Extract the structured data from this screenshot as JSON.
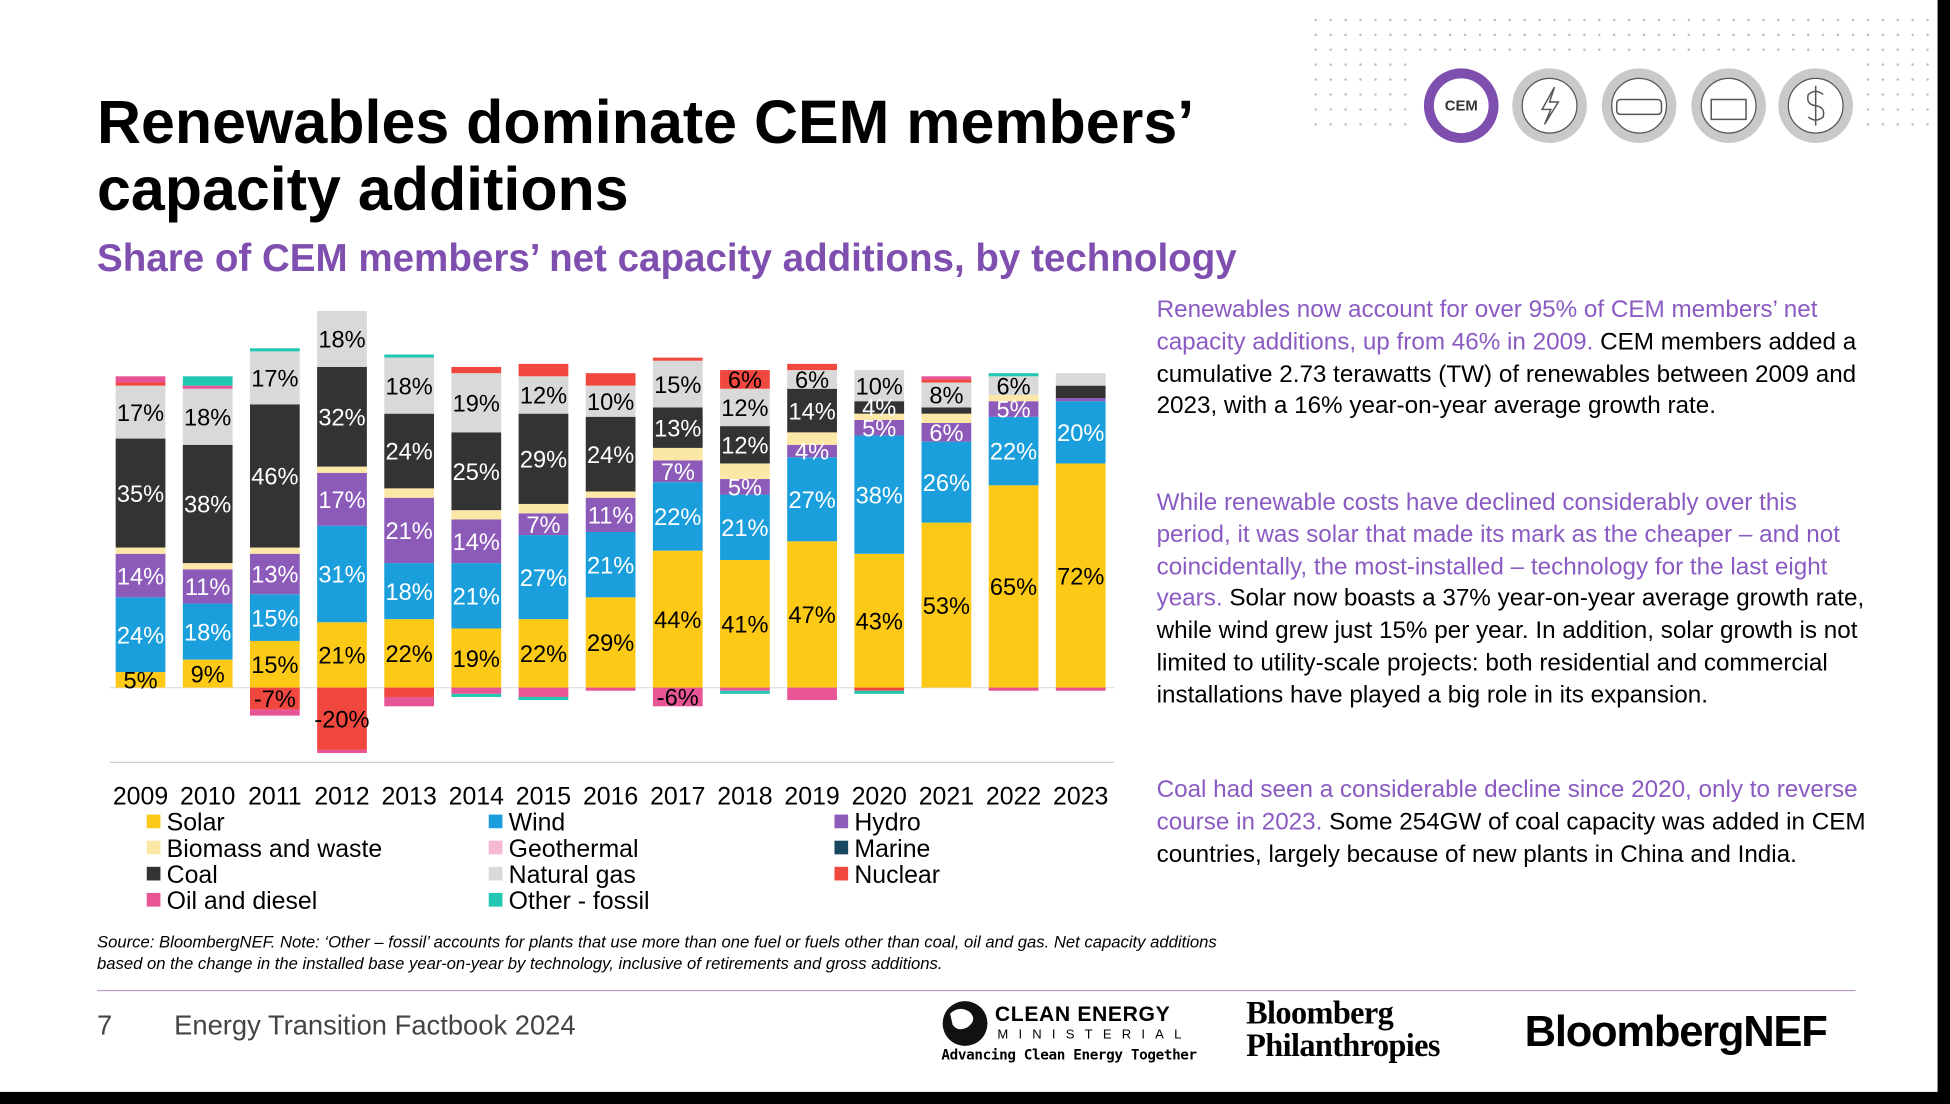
{
  "header": {
    "title_lines": [
      "Renewables dominate CEM members’",
      "capacity additions"
    ],
    "icon_label": "CEM"
  },
  "chart_data": {
    "type": "bar",
    "stacked": true,
    "title": "Share of CEM members’ net capacity additions, by technology",
    "categories": [
      "2009",
      "2010",
      "2011",
      "2012",
      "2013",
      "2014",
      "2015",
      "2016",
      "2017",
      "2018",
      "2019",
      "2020",
      "2021",
      "2022",
      "2023"
    ],
    "ylim": [
      -24,
      125
    ],
    "legend": {
      "columns": 3
    },
    "series": [
      {
        "name": "Solar",
        "color": "#fcc917",
        "label_color": "#000000",
        "values": [
          5,
          9,
          15,
          21,
          22,
          19,
          22,
          29,
          44,
          41,
          47,
          43,
          53,
          65,
          72
        ],
        "value_labels": [
          "5%",
          "9%",
          "15%",
          "21%",
          "22%",
          "19%",
          "22%",
          "29%",
          "44%",
          "41%",
          "47%",
          "43%",
          "53%",
          "65%",
          "72%"
        ]
      },
      {
        "name": "Wind",
        "color": "#1b9fdc",
        "label_color": "#ffffff",
        "values": [
          24,
          18,
          15,
          31,
          18,
          21,
          27,
          21,
          22,
          21,
          27,
          38,
          26,
          22,
          20
        ],
        "value_labels": [
          "24%",
          "18%",
          "15%",
          "31%",
          "18%",
          "21%",
          "27%",
          "21%",
          "22%",
          "21%",
          "27%",
          "38%",
          "26%",
          "22%",
          "20%"
        ]
      },
      {
        "name": "Hydro",
        "color": "#8c5bba",
        "label_color": "#ffffff",
        "values": [
          14,
          11,
          13,
          17,
          21,
          14,
          7,
          11,
          7,
          5,
          4,
          5,
          6,
          5,
          1
        ],
        "value_labels": [
          "14%",
          "11%",
          "13%",
          "17%",
          "21%",
          "14%",
          "7%",
          "11%",
          "7%",
          "5%",
          "4%",
          "5%",
          "6%",
          "5%",
          null
        ]
      },
      {
        "name": "Biomass and waste",
        "color": "#fbe8a6",
        "label_color": "#000000",
        "values": [
          2,
          2,
          2,
          2,
          3,
          3,
          3,
          2,
          4,
          5,
          4,
          2,
          3,
          2,
          0
        ]
      },
      {
        "name": "Geothermal",
        "color": "#f6b8d4",
        "label_color": "#000000",
        "values": [
          0,
          0,
          0,
          0,
          0,
          0,
          0,
          0,
          0,
          0,
          0,
          0,
          0,
          0,
          0
        ]
      },
      {
        "name": "Marine",
        "color": "#18475f",
        "label_color": "#ffffff",
        "values": [
          0,
          0,
          0,
          0,
          0,
          0,
          0,
          0,
          0,
          0,
          0,
          0,
          0,
          0,
          0
        ]
      },
      {
        "name": "Coal",
        "color": "#333333",
        "label_color": "#ffffff",
        "values": [
          35,
          38,
          46,
          32,
          24,
          25,
          29,
          24,
          13,
          12,
          14,
          4,
          2,
          0,
          4
        ],
        "value_labels": [
          "35%",
          "38%",
          "46%",
          "32%",
          "24%",
          "25%",
          "29%",
          "24%",
          "13%",
          "12%",
          "14%",
          "4%",
          null,
          null,
          null
        ]
      },
      {
        "name": "Natural gas",
        "color": "#d9d9d9",
        "label_color": "#000000",
        "values": [
          17,
          18,
          17,
          18,
          18,
          19,
          12,
          10,
          15,
          12,
          6,
          10,
          8,
          6,
          4
        ],
        "value_labels": [
          "17%",
          "18%",
          "17%",
          "18%",
          "18%",
          "19%",
          "12%",
          "10%",
          "15%",
          "12%",
          "6%",
          "10%",
          "8%",
          "6%",
          null
        ]
      },
      {
        "name": "Nuclear",
        "color": "#f0483e",
        "label_color": "#000000",
        "values": [
          1,
          0,
          -7,
          -20,
          -3,
          2,
          4,
          4,
          1,
          6,
          2,
          -1,
          1,
          0,
          0
        ],
        "value_labels": [
          null,
          null,
          "-7%",
          "-20%",
          null,
          null,
          null,
          null,
          null,
          "6%",
          null,
          null,
          null,
          null,
          null
        ]
      },
      {
        "name": "Oil and diesel",
        "color": "#e85596",
        "label_color": "#000000",
        "values": [
          2,
          1,
          -2,
          -1,
          -3,
          -2,
          -3,
          -1,
          -6,
          -1,
          -4,
          0,
          1,
          -1,
          -1
        ],
        "value_labels": [
          null,
          null,
          null,
          null,
          null,
          null,
          null,
          null,
          "-6%",
          null,
          null,
          null,
          null,
          null,
          null
        ]
      },
      {
        "name": "Other - fossil",
        "color": "#22c7b2",
        "label_color": "#000000",
        "values": [
          0,
          3,
          1,
          0,
          1,
          -1,
          -1,
          0,
          0,
          -1,
          0,
          -1,
          0,
          1,
          0
        ]
      }
    ]
  },
  "commentary": [
    {
      "highlight": "Renewables now account for over 95% of CEM members’ net capacity additions, up from 46% in 2009.",
      "body": " CEM members added a cumulative 2.73 terawatts (TW) of renewables between 2009 and 2023, with a 16% year-on-year average growth rate."
    },
    {
      "highlight": "While renewable costs have declined considerably over this period, it was solar that made its mark as the cheaper – and not coincidentally, the most-installed – technology for the last eight years.",
      "body": " Solar now boasts a 37% year-on-year average growth rate, while wind grew just 15% per year. In addition, solar growth is not limited to utility-scale projects: both residential and commercial installations have played a big role in its expansion."
    },
    {
      "highlight": "Coal had seen a considerable decline since 2020, only to reverse course in 2023.",
      "body": " Some 254GW of coal capacity was added in CEM countries, largely because of new plants in China and India."
    }
  ],
  "source_note": "Source: BloombergNEF. Note: ‘Other – fossil’ accounts for plants that use more than one fuel or fuels other than coal, oil and gas. Net capacity additions based on the change in the installed base year-on-year by technology, inclusive of retirements and gross additions.",
  "footer": {
    "page_number": "7",
    "publication": "Energy Transition Factbook 2024",
    "cem_name": "CLEAN ENERGY",
    "cem_sub": "MINISTERIAL",
    "cem_tagline": "Advancing Clean Energy Together",
    "philanthropies": [
      "Bloomberg",
      "Philanthropies"
    ],
    "bnef": "BloombergNEF"
  }
}
